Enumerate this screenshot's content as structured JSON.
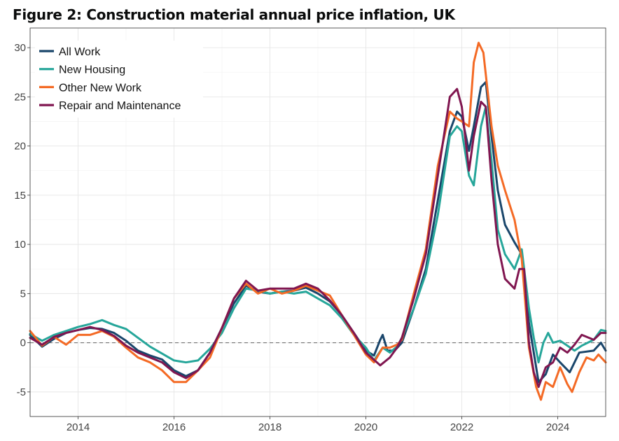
{
  "chart_data": {
    "type": "line",
    "title": "Figure 2: Construction material annual price inflation, UK",
    "xlabel": "",
    "ylabel": "",
    "xlim": [
      2013.0,
      2025.0
    ],
    "ylim": [
      -7.5,
      32
    ],
    "x_ticks": [
      2014,
      2016,
      2018,
      2020,
      2022,
      2024
    ],
    "y_ticks": [
      -5,
      0,
      5,
      10,
      15,
      20,
      25,
      30
    ],
    "legend_position": "top-left",
    "reference_line": 0,
    "series": [
      {
        "name": "All Work",
        "color": "#1a466b",
        "points": [
          [
            2013.0,
            0.8
          ],
          [
            2013.25,
            -0.4
          ],
          [
            2013.5,
            0.4
          ],
          [
            2013.75,
            1.0
          ],
          [
            2014.0,
            1.3
          ],
          [
            2014.25,
            1.5
          ],
          [
            2014.5,
            1.4
          ],
          [
            2014.75,
            1.0
          ],
          [
            2015.0,
            0.2
          ],
          [
            2015.25,
            -0.8
          ],
          [
            2015.5,
            -1.3
          ],
          [
            2015.75,
            -1.7
          ],
          [
            2016.0,
            -2.8
          ],
          [
            2016.25,
            -3.4
          ],
          [
            2016.5,
            -2.8
          ],
          [
            2016.75,
            -1.0
          ],
          [
            2017.0,
            1.5
          ],
          [
            2017.25,
            4.0
          ],
          [
            2017.5,
            5.8
          ],
          [
            2017.75,
            5.2
          ],
          [
            2018.0,
            5.0
          ],
          [
            2018.25,
            5.2
          ],
          [
            2018.5,
            5.3
          ],
          [
            2018.75,
            5.6
          ],
          [
            2019.0,
            5.0
          ],
          [
            2019.25,
            4.2
          ],
          [
            2019.5,
            2.8
          ],
          [
            2019.75,
            1.0
          ],
          [
            2020.0,
            -0.8
          ],
          [
            2020.17,
            -1.3
          ],
          [
            2020.3,
            0.3
          ],
          [
            2020.35,
            0.8
          ],
          [
            2020.45,
            -0.8
          ],
          [
            2020.6,
            -0.8
          ],
          [
            2020.75,
            0.0
          ],
          [
            2021.0,
            3.5
          ],
          [
            2021.25,
            7.5
          ],
          [
            2021.5,
            14.5
          ],
          [
            2021.75,
            21.5
          ],
          [
            2021.9,
            23.5
          ],
          [
            2022.0,
            23.0
          ],
          [
            2022.15,
            19.5
          ],
          [
            2022.25,
            22.0
          ],
          [
            2022.4,
            26.0
          ],
          [
            2022.5,
            26.5
          ],
          [
            2022.62,
            21.0
          ],
          [
            2022.75,
            15.5
          ],
          [
            2022.9,
            12.0
          ],
          [
            2023.1,
            10.2
          ],
          [
            2023.25,
            9.0
          ],
          [
            2023.4,
            2.0
          ],
          [
            2023.5,
            -1.0
          ],
          [
            2023.6,
            -4.0
          ],
          [
            2023.75,
            -3.2
          ],
          [
            2023.9,
            -1.2
          ],
          [
            2024.05,
            -2.0
          ],
          [
            2024.25,
            -3.0
          ],
          [
            2024.45,
            -1.0
          ],
          [
            2024.75,
            -0.8
          ],
          [
            2024.9,
            0.0
          ],
          [
            2025.0,
            -0.8
          ]
        ]
      },
      {
        "name": "New Housing",
        "color": "#26a69a",
        "points": [
          [
            2013.0,
            0.9
          ],
          [
            2013.25,
            0.2
          ],
          [
            2013.5,
            0.8
          ],
          [
            2013.75,
            1.2
          ],
          [
            2014.0,
            1.6
          ],
          [
            2014.25,
            1.9
          ],
          [
            2014.5,
            2.3
          ],
          [
            2014.75,
            1.8
          ],
          [
            2015.0,
            1.4
          ],
          [
            2015.25,
            0.5
          ],
          [
            2015.5,
            -0.4
          ],
          [
            2015.75,
            -1.1
          ],
          [
            2016.0,
            -1.8
          ],
          [
            2016.25,
            -2.0
          ],
          [
            2016.5,
            -1.8
          ],
          [
            2016.75,
            -0.6
          ],
          [
            2017.0,
            1.0
          ],
          [
            2017.25,
            3.5
          ],
          [
            2017.5,
            5.5
          ],
          [
            2017.75,
            5.3
          ],
          [
            2018.0,
            5.0
          ],
          [
            2018.25,
            5.2
          ],
          [
            2018.5,
            5.0
          ],
          [
            2018.75,
            5.2
          ],
          [
            2019.0,
            4.5
          ],
          [
            2019.25,
            3.8
          ],
          [
            2019.5,
            2.5
          ],
          [
            2019.75,
            0.8
          ],
          [
            2020.0,
            -0.5
          ],
          [
            2020.17,
            -1.8
          ],
          [
            2020.35,
            -0.5
          ],
          [
            2020.5,
            -1.0
          ],
          [
            2020.65,
            -0.4
          ],
          [
            2020.75,
            0.5
          ],
          [
            2021.0,
            3.5
          ],
          [
            2021.25,
            7.0
          ],
          [
            2021.5,
            13.0
          ],
          [
            2021.75,
            21.0
          ],
          [
            2021.9,
            22.0
          ],
          [
            2022.0,
            21.5
          ],
          [
            2022.15,
            17.0
          ],
          [
            2022.25,
            16.0
          ],
          [
            2022.4,
            22.0
          ],
          [
            2022.5,
            24.0
          ],
          [
            2022.62,
            18.5
          ],
          [
            2022.75,
            11.5
          ],
          [
            2022.9,
            9.0
          ],
          [
            2023.1,
            7.5
          ],
          [
            2023.25,
            9.5
          ],
          [
            2023.4,
            3.5
          ],
          [
            2023.5,
            0.5
          ],
          [
            2023.6,
            -2.0
          ],
          [
            2023.7,
            0.0
          ],
          [
            2023.8,
            1.0
          ],
          [
            2023.9,
            0.0
          ],
          [
            2024.05,
            0.2
          ],
          [
            2024.2,
            -0.3
          ],
          [
            2024.35,
            -0.8
          ],
          [
            2024.5,
            -0.3
          ],
          [
            2024.75,
            0.3
          ],
          [
            2024.9,
            1.3
          ],
          [
            2025.0,
            1.2
          ]
        ]
      },
      {
        "name": "Other New Work",
        "color": "#f46a25",
        "points": [
          [
            2013.0,
            1.2
          ],
          [
            2013.25,
            -0.3
          ],
          [
            2013.5,
            0.6
          ],
          [
            2013.75,
            -0.2
          ],
          [
            2014.0,
            0.8
          ],
          [
            2014.25,
            0.8
          ],
          [
            2014.5,
            1.2
          ],
          [
            2014.75,
            0.6
          ],
          [
            2015.0,
            -0.5
          ],
          [
            2015.25,
            -1.5
          ],
          [
            2015.5,
            -2.0
          ],
          [
            2015.75,
            -2.8
          ],
          [
            2016.0,
            -4.0
          ],
          [
            2016.25,
            -4.0
          ],
          [
            2016.5,
            -2.8
          ],
          [
            2016.75,
            -1.5
          ],
          [
            2017.0,
            1.5
          ],
          [
            2017.25,
            4.5
          ],
          [
            2017.5,
            6.0
          ],
          [
            2017.75,
            5.0
          ],
          [
            2018.0,
            5.5
          ],
          [
            2018.25,
            5.0
          ],
          [
            2018.5,
            5.3
          ],
          [
            2018.75,
            5.8
          ],
          [
            2019.0,
            5.3
          ],
          [
            2019.25,
            4.8
          ],
          [
            2019.5,
            2.8
          ],
          [
            2019.75,
            0.8
          ],
          [
            2020.0,
            -1.2
          ],
          [
            2020.17,
            -2.0
          ],
          [
            2020.35,
            -0.5
          ],
          [
            2020.5,
            -0.5
          ],
          [
            2020.65,
            -0.2
          ],
          [
            2020.75,
            0.3
          ],
          [
            2021.0,
            5.0
          ],
          [
            2021.25,
            9.5
          ],
          [
            2021.5,
            18.0
          ],
          [
            2021.75,
            23.5
          ],
          [
            2021.9,
            22.8
          ],
          [
            2022.0,
            22.5
          ],
          [
            2022.15,
            22.0
          ],
          [
            2022.25,
            28.5
          ],
          [
            2022.35,
            30.5
          ],
          [
            2022.45,
            29.5
          ],
          [
            2022.62,
            22.0
          ],
          [
            2022.75,
            18.0
          ],
          [
            2022.9,
            15.5
          ],
          [
            2023.1,
            12.5
          ],
          [
            2023.25,
            8.5
          ],
          [
            2023.4,
            -0.5
          ],
          [
            2023.55,
            -4.5
          ],
          [
            2023.65,
            -5.8
          ],
          [
            2023.75,
            -4.0
          ],
          [
            2023.9,
            -4.5
          ],
          [
            2024.05,
            -2.5
          ],
          [
            2024.2,
            -4.2
          ],
          [
            2024.3,
            -5.0
          ],
          [
            2024.45,
            -3.0
          ],
          [
            2024.6,
            -1.5
          ],
          [
            2024.75,
            -1.8
          ],
          [
            2024.85,
            -1.2
          ],
          [
            2025.0,
            -2.0
          ]
        ]
      },
      {
        "name": "Repair and Maintenance",
        "color": "#801650",
        "points": [
          [
            2013.0,
            0.5
          ],
          [
            2013.25,
            -0.2
          ],
          [
            2013.5,
            0.6
          ],
          [
            2013.75,
            1.0
          ],
          [
            2014.0,
            1.3
          ],
          [
            2014.25,
            1.6
          ],
          [
            2014.5,
            1.3
          ],
          [
            2014.75,
            0.7
          ],
          [
            2015.0,
            -0.3
          ],
          [
            2015.25,
            -1.0
          ],
          [
            2015.5,
            -1.5
          ],
          [
            2015.75,
            -2.0
          ],
          [
            2016.0,
            -3.0
          ],
          [
            2016.25,
            -3.6
          ],
          [
            2016.5,
            -2.8
          ],
          [
            2016.75,
            -1.0
          ],
          [
            2017.0,
            1.5
          ],
          [
            2017.25,
            4.5
          ],
          [
            2017.5,
            6.3
          ],
          [
            2017.75,
            5.3
          ],
          [
            2018.0,
            5.5
          ],
          [
            2018.25,
            5.5
          ],
          [
            2018.5,
            5.5
          ],
          [
            2018.75,
            6.0
          ],
          [
            2019.0,
            5.5
          ],
          [
            2019.25,
            4.3
          ],
          [
            2019.5,
            2.8
          ],
          [
            2019.75,
            1.0
          ],
          [
            2020.0,
            -1.0
          ],
          [
            2020.3,
            -2.3
          ],
          [
            2020.5,
            -1.5
          ],
          [
            2020.65,
            -0.5
          ],
          [
            2020.75,
            0.5
          ],
          [
            2021.0,
            4.5
          ],
          [
            2021.25,
            9.0
          ],
          [
            2021.5,
            17.0
          ],
          [
            2021.75,
            25.0
          ],
          [
            2021.9,
            25.8
          ],
          [
            2022.0,
            24.0
          ],
          [
            2022.15,
            17.5
          ],
          [
            2022.25,
            21.0
          ],
          [
            2022.4,
            24.5
          ],
          [
            2022.5,
            24.0
          ],
          [
            2022.62,
            16.5
          ],
          [
            2022.75,
            10.0
          ],
          [
            2022.9,
            6.5
          ],
          [
            2023.1,
            5.5
          ],
          [
            2023.2,
            7.5
          ],
          [
            2023.3,
            7.5
          ],
          [
            2023.4,
            0.0
          ],
          [
            2023.5,
            -3.0
          ],
          [
            2023.6,
            -4.5
          ],
          [
            2023.75,
            -2.5
          ],
          [
            2023.9,
            -2.0
          ],
          [
            2024.05,
            -0.5
          ],
          [
            2024.2,
            -1.0
          ],
          [
            2024.35,
            -0.2
          ],
          [
            2024.5,
            0.8
          ],
          [
            2024.75,
            0.3
          ],
          [
            2024.9,
            1.0
          ],
          [
            2025.0,
            1.0
          ]
        ]
      }
    ]
  }
}
